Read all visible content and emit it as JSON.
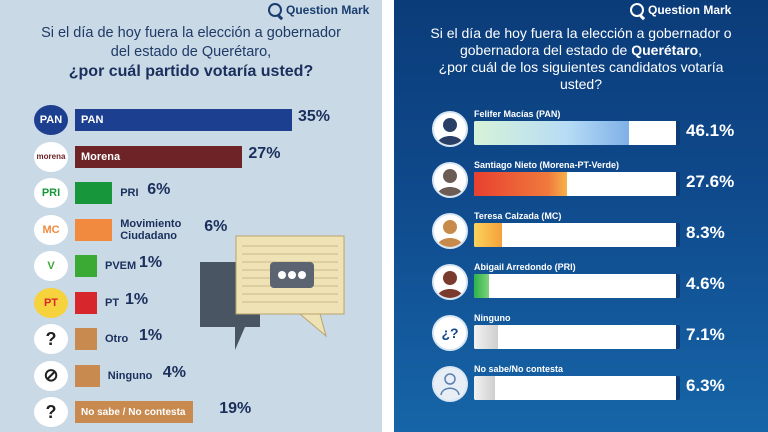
{
  "left": {
    "brand": "Question Mark",
    "title_line1": "Si el día de hoy fuera la elección a gobernador",
    "title_line2": "del estado de Querétaro,",
    "question": "¿por cuál partido votaría usted?",
    "logo_labels": {
      "pan": "PAN",
      "morena": "morena",
      "pri": "PRI",
      "mc": "MC",
      "pvem": "V",
      "pt": "PT",
      "otro": "?",
      "ninguno": "⊘",
      "nosabe": "?"
    },
    "colors": {
      "pan": "#1d3f8f",
      "morena": "#6e2326",
      "pri": "#17963b",
      "mc": "#f18a3e",
      "pvem": "#3aaa35",
      "pt": "#d7262c",
      "otro": "#c98a4f",
      "ninguno": "#c98a4f",
      "nosabe": "#c98a4f"
    }
  },
  "right": {
    "brand": "Question Mark",
    "title_line1": "Si el día de hoy fuera la elección a gobernador o",
    "title_line2_pre": "gobernadora del estado de ",
    "title_line2_bold": "Querétaro",
    "title_line2_post": ",",
    "title_line3": "¿por cuál de los siguientes candidatos votaría",
    "title_line4": "usted?",
    "colors": {
      "pan": "#b7dcf5",
      "morena": "#e8402f",
      "mc": "#f6a03a",
      "pri": "#2bb34a",
      "ninguno": "#cfcfcf",
      "nosabe": "#cfcfcf"
    }
  },
  "chart_data": [
    {
      "type": "bar",
      "title": "Si el día de hoy fuera la elección a gobernador del estado de Querétaro, ¿por cuál partido votaría usted?",
      "categories": [
        "PAN",
        "Morena",
        "PRI",
        "Movimiento Ciudadano",
        "PVEM",
        "PT",
        "Otro",
        "Ninguno",
        "No sabe / No contesta"
      ],
      "values": [
        35,
        27,
        6,
        6,
        1,
        1,
        1,
        4,
        19
      ],
      "value_labels": [
        "35%",
        "27%",
        "6%",
        "6%",
        "1%",
        "1%",
        "1%",
        "4%",
        "19%"
      ],
      "label_lines": {
        "mc": [
          "Movimiento",
          "Ciudadano"
        ]
      }
    },
    {
      "type": "bar",
      "title": "Si el día de hoy fuera la elección a gobernador o gobernadora del estado de Querétaro, ¿por cuál de los siguientes candidatos votaría usted?",
      "categories": [
        "Felifer Macías (PAN)",
        "Santiago Nieto (Morena-PT-Verde)",
        "Teresa Calzada (MC)",
        "Abigail Arredondo (PRI)",
        "Ninguno",
        "No sabe/No contesta"
      ],
      "values": [
        46.1,
        27.6,
        8.3,
        4.6,
        7.1,
        6.3
      ],
      "value_labels": [
        "46.1%",
        "27.6%",
        "8.3%",
        "4.6%",
        "7.1%",
        "6.3%"
      ]
    }
  ]
}
